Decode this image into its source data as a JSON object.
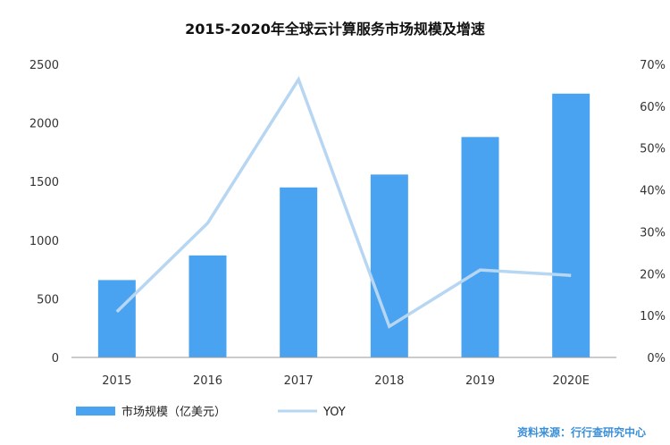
{
  "chart_data": {
    "type": "bar",
    "title": "2015-2020年全球云计算服务市场规模及增速",
    "categories": [
      "2015",
      "2016",
      "2017",
      "2018",
      "2019",
      "2020E"
    ],
    "series": [
      {
        "name": "市场规模（亿美元）",
        "type": "bar",
        "axis": "left",
        "values": [
          660,
          870,
          1450,
          1560,
          1880,
          2250
        ],
        "color": "#4aa3f0"
      },
      {
        "name": "YOY",
        "type": "line",
        "axis": "right",
        "values": [
          10.9,
          32.1,
          66.4,
          7.4,
          20.9,
          19.6
        ],
        "color": "#b7d6f2"
      }
    ],
    "y_left": {
      "min": 0,
      "max": 2500,
      "ticks": [
        "0",
        "500",
        "1000",
        "1500",
        "2000",
        "2500"
      ]
    },
    "y_right": {
      "min": 0,
      "max": 70,
      "ticks": [
        "0%",
        "10%",
        "20%",
        "30%",
        "40%",
        "50%",
        "60%",
        "70%"
      ]
    },
    "grid": false,
    "legend_position": "bottom-left"
  },
  "source": "资料来源：行行查研究中心"
}
